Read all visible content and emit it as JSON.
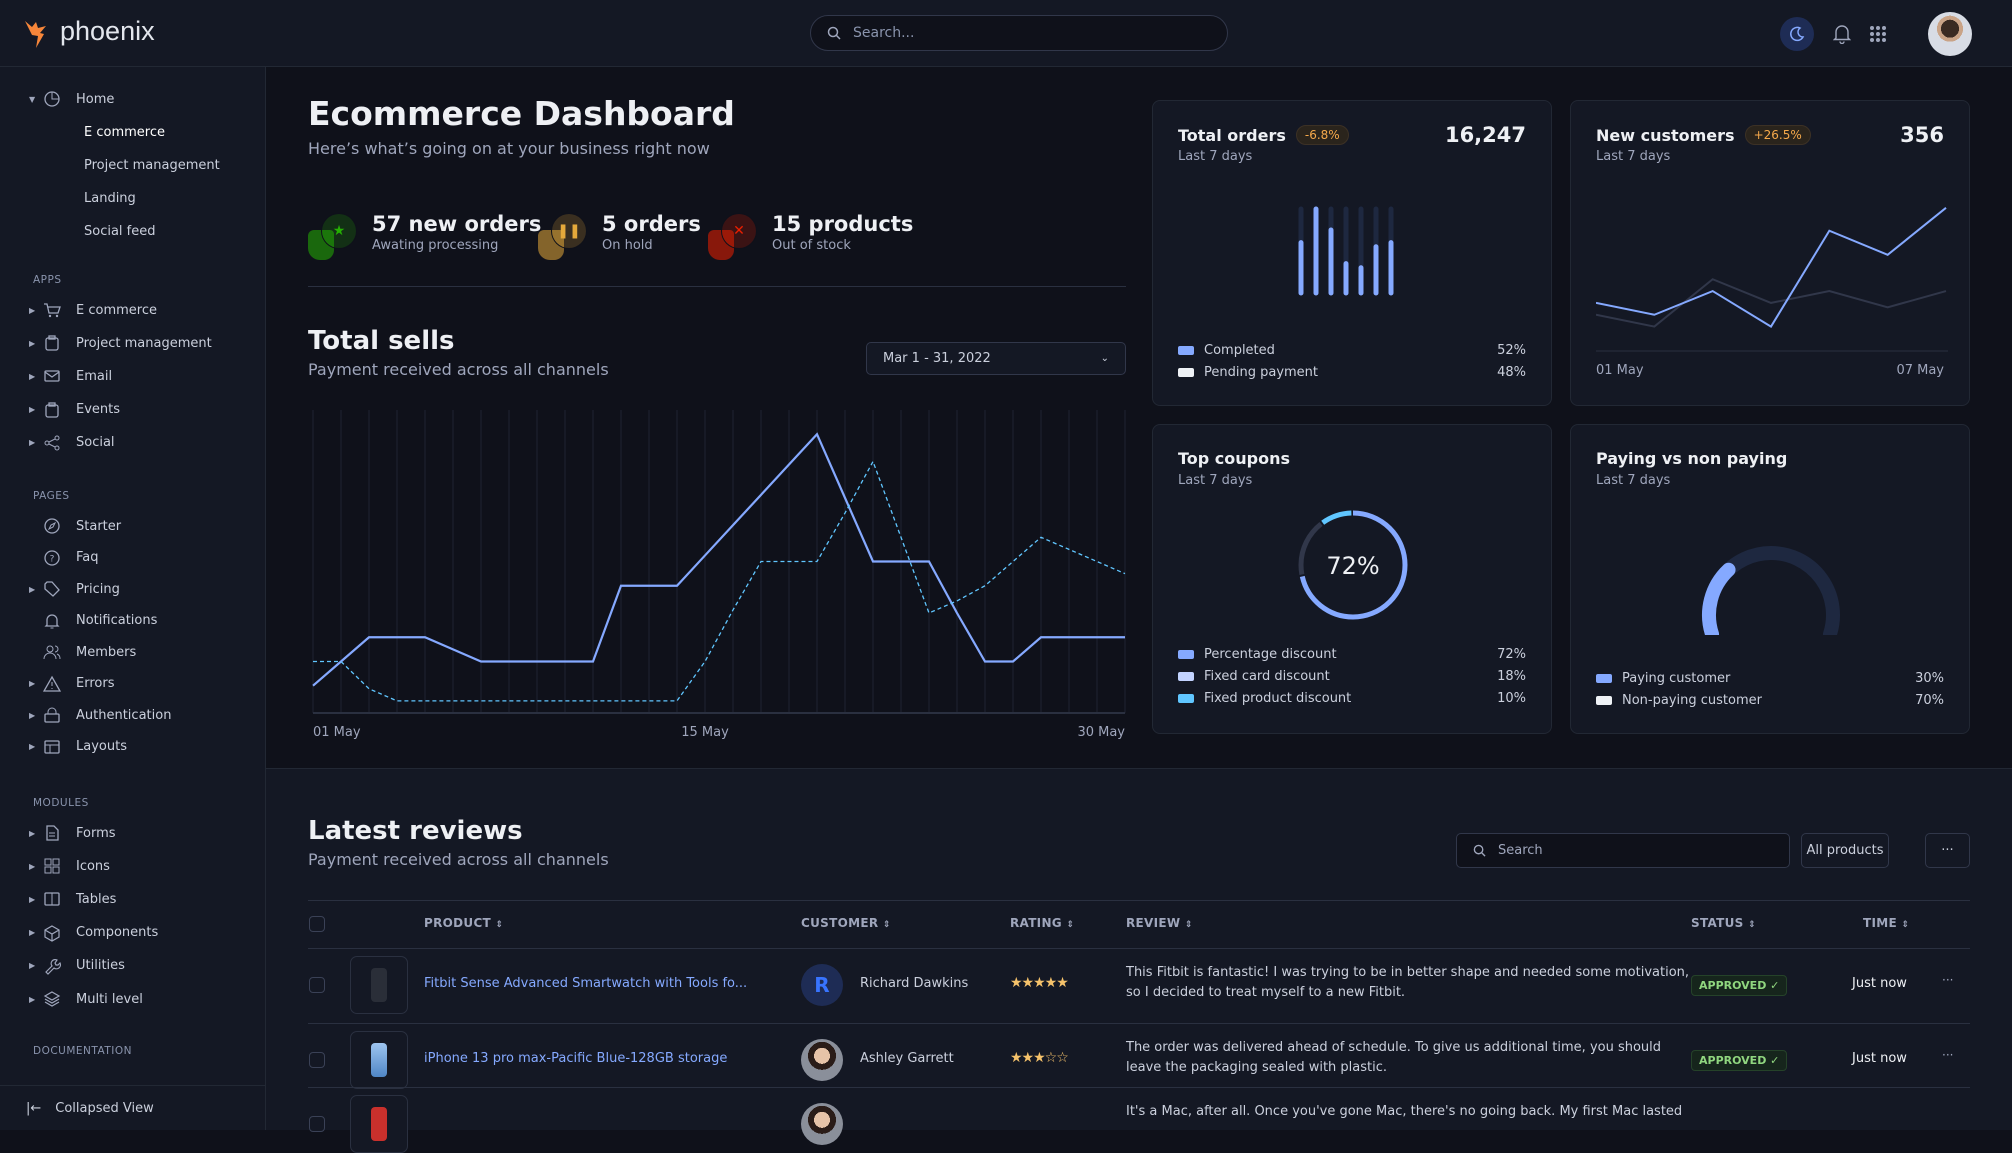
{
  "app": {
    "name": "phoenix"
  },
  "topbar": {
    "search_placeholder": "Search...",
    "icons": [
      "moon-icon",
      "bell-icon",
      "apps-grid-icon"
    ],
    "accent": "#85a9ff"
  },
  "sidebar": {
    "home": {
      "label": "Home",
      "items": [
        "E commerce",
        "Project management",
        "Landing",
        "Social feed"
      ],
      "active": "E commerce"
    },
    "sections": [
      {
        "label": "APPS",
        "items": [
          {
            "label": "E commerce",
            "icon": "cart-icon",
            "caret": true
          },
          {
            "label": "Project management",
            "icon": "clipboard-icon",
            "caret": true
          },
          {
            "label": "Email",
            "icon": "mail-icon",
            "caret": true
          },
          {
            "label": "Events",
            "icon": "clipboard-icon",
            "caret": true
          },
          {
            "label": "Social",
            "icon": "share-icon",
            "caret": true
          }
        ]
      },
      {
        "label": "PAGES",
        "items": [
          {
            "label": "Starter",
            "icon": "compass-icon",
            "caret": false
          },
          {
            "label": "Faq",
            "icon": "help-icon",
            "caret": false
          },
          {
            "label": "Pricing",
            "icon": "tag-icon",
            "caret": true
          },
          {
            "label": "Notifications",
            "icon": "bell-icon",
            "caret": false
          },
          {
            "label": "Members",
            "icon": "users-icon",
            "caret": false
          },
          {
            "label": "Errors",
            "icon": "alert-icon",
            "caret": true
          },
          {
            "label": "Authentication",
            "icon": "lock-icon",
            "caret": true
          },
          {
            "label": "Layouts",
            "icon": "layout-icon",
            "caret": true
          }
        ]
      },
      {
        "label": "MODULES",
        "items": [
          {
            "label": "Forms",
            "icon": "file-icon",
            "caret": true
          },
          {
            "label": "Icons",
            "icon": "grid-icon",
            "caret": true
          },
          {
            "label": "Tables",
            "icon": "columns-icon",
            "caret": true
          },
          {
            "label": "Components",
            "icon": "package-icon",
            "caret": true
          },
          {
            "label": "Utilities",
            "icon": "tool-icon",
            "caret": true
          },
          {
            "label": "Multi level",
            "icon": "layers-icon",
            "caret": true
          }
        ]
      },
      {
        "label": "DOCUMENTATION",
        "items": []
      }
    ],
    "collapsed_label": "Collapsed View"
  },
  "header": {
    "title": "Ecommerce Dashboard",
    "subtitle": "Here’s what’s going on at your business right now"
  },
  "stats": [
    {
      "value": "57 new orders",
      "label": "Awating processing",
      "color": "#25b003",
      "icon": "star-icon"
    },
    {
      "value": "5 orders",
      "label": "On hold",
      "color": "#e5a93b",
      "icon": "pause-icon"
    },
    {
      "value": "15 products",
      "label": "Out of stock",
      "color": "#ec1f00",
      "icon": "x-icon"
    }
  ],
  "total_sells": {
    "title": "Total sells",
    "subtitle": "Payment received across all channels",
    "date_range": "Mar 1 - 31, 2022",
    "x_labels": [
      "01 May",
      "15 May",
      "30 May"
    ]
  },
  "cards": {
    "total_orders": {
      "title": "Total orders",
      "badge": "-6.8%",
      "subtitle": "Last 7 days",
      "value": "16,247",
      "legend": [
        {
          "label": "Completed",
          "pct": "52%",
          "color": "#85a9ff"
        },
        {
          "label": "Pending payment",
          "pct": "48%",
          "color": "#eff2f6"
        }
      ]
    },
    "new_customers": {
      "title": "New customers",
      "badge": "+26.5%",
      "subtitle": "Last 7 days",
      "value": "356",
      "x_labels": [
        "01 May",
        "07 May"
      ]
    },
    "top_coupons": {
      "title": "Top coupons",
      "subtitle": "Last 7 days",
      "center": "72%",
      "legend": [
        {
          "label": "Percentage discount",
          "pct": "72%",
          "color": "#85a9ff"
        },
        {
          "label": "Fixed card discount",
          "pct": "18%",
          "color": "#c3d3ff"
        },
        {
          "label": "Fixed product discount",
          "pct": "10%",
          "color": "#60c6ff"
        }
      ]
    },
    "paying": {
      "title": "Paying vs non paying",
      "subtitle": "Last 7 days",
      "legend": [
        {
          "label": "Paying customer",
          "pct": "30%",
          "color": "#85a9ff"
        },
        {
          "label": "Non-paying customer",
          "pct": "70%",
          "color": "#eff2f6"
        }
      ]
    }
  },
  "reviews": {
    "title": "Latest reviews",
    "subtitle": "Payment received across all channels",
    "search_placeholder": "Search",
    "filter_label": "All products",
    "more_label": "···",
    "columns": [
      "PRODUCT",
      "CUSTOMER",
      "RATING",
      "REVIEW",
      "STATUS",
      "TIME"
    ],
    "rows": [
      {
        "product": "Fitbit Sense Advanced Smartwatch with Tools fo...",
        "customer": "Richard Dawkins",
        "initial": "R",
        "rating": 5,
        "stars": "★★★★★",
        "review_lines": [
          "This Fitbit is fantastic! I was trying to be in better shape and needed some motivation,",
          "so I decided to treat myself to a new Fitbit."
        ],
        "status": "APPROVED ✓",
        "time": "Just now"
      },
      {
        "product": "iPhone 13 pro max-Pacific Blue-128GB storage",
        "customer": "Ashley Garrett",
        "initial": "",
        "rating": 3,
        "stars": "★★★☆☆",
        "review_lines": [
          "The order was delivered ahead of schedule. To give us additional time, you should",
          "leave the packaging sealed with plastic."
        ],
        "status": "APPROVED ✓",
        "time": "Just now"
      },
      {
        "product": "",
        "customer": "",
        "initial": "",
        "rating": null,
        "stars": "",
        "review_lines": [
          "It's a Mac, after all. Once you've gone Mac, there's no going back. My first Mac lasted",
          ""
        ],
        "status": "",
        "time": ""
      }
    ]
  },
  "chart_data": [
    {
      "id": "total-sells",
      "type": "line",
      "x_labels": [
        "01 May",
        "15 May",
        "30 May"
      ],
      "x": [
        1,
        2,
        3,
        4,
        5,
        6,
        7,
        8,
        9,
        10,
        11,
        12,
        13,
        14,
        15,
        16,
        17,
        18,
        19,
        20,
        21,
        22,
        23,
        24,
        25,
        26,
        27,
        28,
        29,
        30
      ],
      "series": [
        {
          "style": "solid",
          "color": "#85a9ff",
          "values": [
            9,
            17,
            25,
            25,
            25,
            21,
            17,
            17,
            17,
            17,
            17,
            42,
            42,
            42,
            52,
            62,
            72,
            82,
            92,
            71,
            50,
            50,
            50,
            33,
            17,
            17,
            25,
            25,
            25,
            25
          ]
        },
        {
          "style": "dashed",
          "color": "#60c6ff",
          "values": [
            17,
            17,
            8,
            4,
            4,
            4,
            4,
            4,
            4,
            4,
            4,
            4,
            4,
            4,
            17,
            34,
            50,
            50,
            50,
            66,
            83,
            58,
            33,
            37,
            42,
            50,
            58,
            54,
            50,
            46
          ]
        }
      ],
      "grid": "vertical"
    },
    {
      "id": "total-orders",
      "type": "bar",
      "values": [
        60,
        100,
        75,
        35,
        30,
        55,
        60
      ],
      "max": 100,
      "color": "#85a9ff"
    },
    {
      "id": "new-customers",
      "type": "line",
      "x_labels": [
        "01 May",
        "07 May"
      ],
      "series": [
        {
          "color": "#85a9ff",
          "values": [
            130,
            98,
            162,
            66,
            325,
            260,
            387
          ]
        },
        {
          "color": "#31374a",
          "values": [
            98,
            66,
            194,
            130,
            162,
            118,
            162
          ]
        }
      ]
    },
    {
      "id": "top-coupons",
      "type": "pie",
      "donut": true,
      "values": [
        72,
        18,
        10
      ],
      "colors": [
        "#85a9ff",
        "#31374a",
        "#60c6ff"
      ]
    },
    {
      "id": "paying",
      "type": "gauge",
      "value": 30,
      "colors": [
        "#85a9ff",
        "#1e2840"
      ]
    }
  ]
}
